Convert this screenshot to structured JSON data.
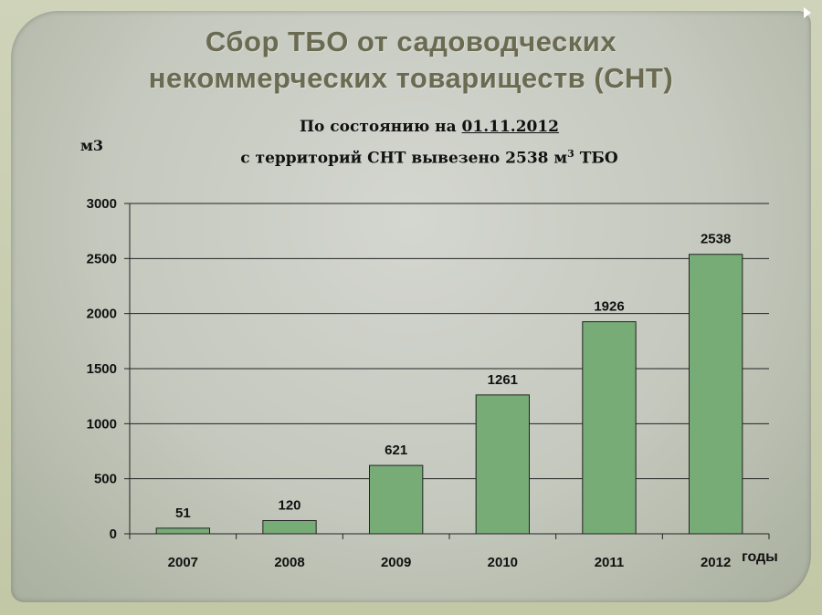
{
  "title": {
    "line1": "Сбор ТБО от садоводческих",
    "line2": "некоммерческих товариществ (СНТ)"
  },
  "subtitle": {
    "prefix": "По состоянию на ",
    "date": "01.11.2012",
    "line2_start": "с территорий СНТ вывезено 2538 м",
    "superscript": "3",
    "line2_end": " ТБО"
  },
  "chart_data": {
    "type": "bar",
    "categories": [
      "2007",
      "2008",
      "2009",
      "2010",
      "2011",
      "2012"
    ],
    "values": [
      51,
      120,
      621,
      1261,
      1926,
      2538
    ],
    "data_labels": [
      "51",
      "120",
      "621",
      "1261",
      "1926",
      "2538"
    ],
    "ylabel": "м3",
    "xlabel": "годы",
    "ylim": [
      0,
      3000
    ],
    "yticks": [
      0,
      500,
      1000,
      1500,
      2000,
      2500,
      3000
    ],
    "grid": true,
    "bar_color": "#77ac77"
  }
}
